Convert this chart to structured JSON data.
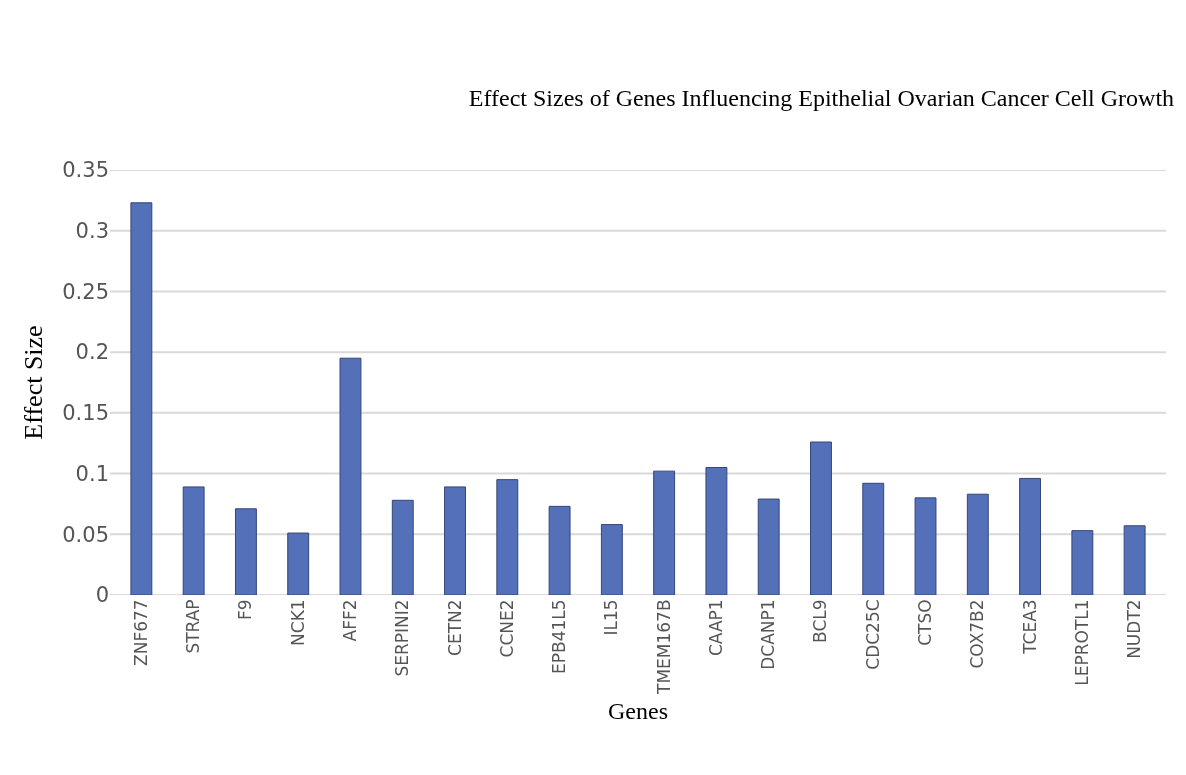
{
  "chart_data": {
    "type": "bar",
    "title": "Effect Sizes of Genes Influencing Epithelial Ovarian Cancer Cell Growth",
    "xlabel": "Genes",
    "ylabel": "Effect Size",
    "categories": [
      "ZNF677",
      "STRAP",
      "F9",
      "NCK1",
      "AFF2",
      "SERPINI2",
      "CETN2",
      "CCNE2",
      "EPB41L5",
      "IL15",
      "TMEM167B",
      "CAAP1",
      "DCANP1",
      "BCL9",
      "CDC25C",
      "CTSO",
      "COX7B2",
      "TCEA3",
      "LEPROTL1",
      "NUDT2"
    ],
    "values": [
      0.323,
      0.089,
      0.071,
      0.051,
      0.195,
      0.078,
      0.089,
      0.095,
      0.073,
      0.058,
      0.102,
      0.105,
      0.079,
      0.126,
      0.092,
      0.08,
      0.083,
      0.096,
      0.053,
      0.057
    ],
    "color": "#5470b8",
    "ylim": [
      0,
      0.35
    ],
    "yticks": [
      0,
      0.05,
      0.1,
      0.15,
      0.2,
      0.25,
      0.3,
      0.35
    ],
    "grid": "y"
  }
}
